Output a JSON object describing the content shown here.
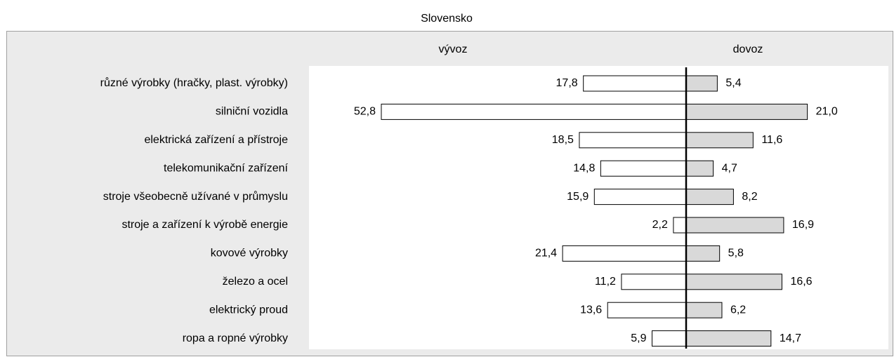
{
  "chart_data": {
    "type": "butterfly",
    "title": "Slovensko",
    "categories": [
      "různé výrobky (hračky, plast. výrobky)",
      "silniční vozidla",
      "elektrická zařízení a přístroje",
      "telekomunikační zařízení",
      "stroje všeobecně užívané v průmyslu",
      "stroje a zařízení k výrobě energie",
      "kovové výrobky",
      "železo a ocel",
      "elektrický proud",
      "ropa a ropné výrobky"
    ],
    "series": [
      {
        "name": "vývoz",
        "color": "#ffffff",
        "values": [
          17.8,
          52.8,
          18.5,
          14.8,
          15.9,
          2.2,
          21.4,
          11.2,
          13.6,
          5.9
        ],
        "value_labels": [
          "17,8",
          "52,8",
          "18,5",
          "14,8",
          "15,9",
          "2,2",
          "21,4",
          "11,2",
          "13,6",
          "5,9"
        ]
      },
      {
        "name": "dovoz",
        "color": "#d9d9d9",
        "values": [
          5.4,
          21.0,
          11.6,
          4.7,
          8.2,
          16.9,
          5.8,
          16.6,
          6.2,
          14.7
        ],
        "value_labels": [
          "5,4",
          "21,0",
          "11,6",
          "4,7",
          "8,2",
          "16,9",
          "5,8",
          "16,6",
          "6,2",
          "14,7"
        ]
      }
    ]
  }
}
